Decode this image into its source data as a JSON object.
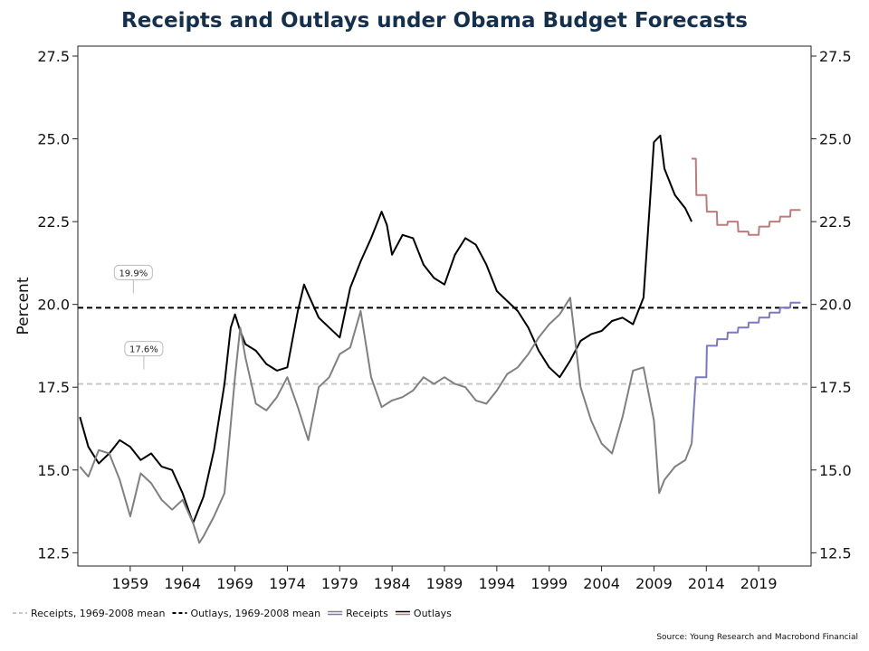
{
  "title": "Receipts and Outlays under Obama Budget Forecasts",
  "source": "Source: Young Research and Macrobond Financial",
  "colors": {
    "outlays": "#000000",
    "receipts": "#808080",
    "outlays_forecast": "#c07a7a",
    "receipts_forecast": "#7a78c4",
    "outlays_mean": "#000000",
    "receipts_mean": "#c8c8c8",
    "title": "#14304f"
  },
  "chart_data": {
    "type": "line",
    "title": "Receipts and Outlays under Obama Budget Forecasts",
    "ylabel": "Percent",
    "xlabel": "",
    "xlim": [
      1954,
      2024
    ],
    "ylim": [
      12.1,
      27.8
    ],
    "y_ticks": [
      12.5,
      15.0,
      17.5,
      20.0,
      22.5,
      25.0,
      27.5
    ],
    "y_tick_labels": [
      "12.5",
      "15.0",
      "17.5",
      "20.0",
      "22.5",
      "25.0",
      "27.5"
    ],
    "x_ticks": [
      1959,
      1964,
      1969,
      1974,
      1979,
      1984,
      1989,
      1994,
      1999,
      2004,
      2009,
      2014,
      2019
    ],
    "x_tick_labels": [
      "1959",
      "1964",
      "1969",
      "1974",
      "1979",
      "1984",
      "1989",
      "1994",
      "1999",
      "2004",
      "2009",
      "2014",
      "2019"
    ],
    "secondary_y_axis": true,
    "grid": false,
    "legend_position": "bottom",
    "legend": [
      {
        "label": "Receipts, 1969-2008 mean",
        "style": "dashed",
        "color": "#c8c8c8"
      },
      {
        "label": "Outlays, 1969-2008 mean",
        "style": "dashed",
        "color": "#000000"
      },
      {
        "label": "Receipts",
        "style": "solid-pair",
        "color": "#808080",
        "color2": "#7a78c4"
      },
      {
        "label": "Outlays",
        "style": "solid-pair",
        "color": "#000000",
        "color2": "#c07a7a"
      }
    ],
    "reference_lines": [
      {
        "name": "Receipts, 1969-2008 mean",
        "y": 17.6,
        "label": "17.6%",
        "label_x": 1960.3
      },
      {
        "name": "Outlays, 1969-2008 mean",
        "y": 19.9,
        "label": "19.9%",
        "label_x": 1959.3
      }
    ],
    "series": [
      {
        "name": "Outlays",
        "color": "#000000",
        "x": [
          1954.2,
          1955,
          1956,
          1957,
          1958,
          1959,
          1960,
          1961,
          1962,
          1963,
          1964,
          1965,
          1966,
          1967,
          1968,
          1968.6,
          1969.0,
          1969.5,
          1970,
          1971,
          1972,
          1973,
          1974,
          1975,
          1975.6,
          1976,
          1977,
          1978,
          1979,
          1980,
          1981,
          1982,
          1983,
          1983.5,
          1984,
          1985,
          1986,
          1987,
          1988,
          1989,
          1990,
          1991,
          1992,
          1993,
          1994,
          1995,
          1996,
          1997,
          1998,
          1999,
          2000,
          2001,
          2002,
          2003,
          2004,
          2005,
          2006,
          2007,
          2008,
          2008.6,
          2009,
          2009.6,
          2010,
          2011,
          2012,
          2012.6
        ],
        "values": [
          16.6,
          15.7,
          15.2,
          15.5,
          15.9,
          15.7,
          15.3,
          15.5,
          15.1,
          15.0,
          14.3,
          13.4,
          14.2,
          15.6,
          17.6,
          19.3,
          19.7,
          19.2,
          18.8,
          18.6,
          18.2,
          18.0,
          18.1,
          19.8,
          20.6,
          20.3,
          19.6,
          19.3,
          19.0,
          20.5,
          21.3,
          22.0,
          22.8,
          22.4,
          21.5,
          22.1,
          22.0,
          21.2,
          20.8,
          20.6,
          21.5,
          22.0,
          21.8,
          21.2,
          20.4,
          20.1,
          19.8,
          19.3,
          18.6,
          18.1,
          17.8,
          18.3,
          18.9,
          19.1,
          19.2,
          19.5,
          19.6,
          19.4,
          20.2,
          23.0,
          24.9,
          25.1,
          24.1,
          23.3,
          22.9,
          22.5
        ]
      },
      {
        "name": "Outlays forecast",
        "color": "#c07a7a",
        "x": [
          2012.6,
          2013.0,
          2013.05,
          2014.0,
          2014.05,
          2015,
          2015.05,
          2016,
          2016.05,
          2017,
          2017.05,
          2018,
          2018.05,
          2019,
          2019.05,
          2020,
          2020.05,
          2021,
          2021.05,
          2022,
          2022.05,
          2023
        ],
        "values": [
          24.4,
          24.4,
          23.3,
          23.3,
          22.8,
          22.8,
          22.4,
          22.4,
          22.5,
          22.5,
          22.2,
          22.2,
          22.1,
          22.1,
          22.35,
          22.35,
          22.5,
          22.5,
          22.65,
          22.65,
          22.85,
          22.85
        ]
      },
      {
        "name": "Receipts",
        "color": "#808080",
        "x": [
          1954.2,
          1955,
          1956,
          1957,
          1958,
          1959,
          1960,
          1961,
          1962,
          1963,
          1964,
          1965,
          1965.6,
          1966,
          1967,
          1968,
          1969,
          1969.5,
          1970,
          1971,
          1972,
          1973,
          1974,
          1975,
          1976,
          1977,
          1978,
          1979,
          1980,
          1981,
          1982,
          1983,
          1984,
          1985,
          1986,
          1987,
          1988,
          1989,
          1990,
          1991,
          1992,
          1993,
          1994,
          1995,
          1996,
          1997,
          1998,
          1999,
          2000,
          2001,
          2002,
          2003,
          2004,
          2005,
          2006,
          2007,
          2008,
          2009,
          2009.5,
          2010,
          2011,
          2012,
          2012.6
        ],
        "values": [
          15.1,
          14.8,
          15.6,
          15.5,
          14.7,
          13.6,
          14.9,
          14.6,
          14.1,
          13.8,
          14.1,
          13.4,
          12.8,
          13.0,
          13.6,
          14.3,
          17.8,
          19.3,
          18.4,
          17.0,
          16.8,
          17.2,
          17.8,
          16.9,
          15.9,
          17.5,
          17.8,
          18.5,
          18.7,
          19.8,
          17.8,
          16.9,
          17.1,
          17.2,
          17.4,
          17.8,
          17.6,
          17.8,
          17.6,
          17.5,
          17.1,
          17.0,
          17.4,
          17.9,
          18.1,
          18.5,
          19.0,
          19.4,
          19.7,
          20.2,
          17.5,
          16.5,
          15.8,
          15.5,
          16.6,
          18.0,
          18.1,
          16.5,
          14.3,
          14.7,
          15.1,
          15.3,
          15.8
        ]
      },
      {
        "name": "Receipts forecast",
        "color": "#7a78c4",
        "x": [
          2012.6,
          2013.0,
          2013.05,
          2014.0,
          2014.05,
          2015,
          2015.05,
          2016,
          2016.05,
          2017,
          2017.05,
          2018,
          2018.05,
          2019,
          2019.05,
          2020,
          2020.05,
          2021,
          2021.05,
          2022,
          2022.05,
          2023
        ],
        "values": [
          15.8,
          17.8,
          17.8,
          17.8,
          18.75,
          18.75,
          18.95,
          18.95,
          19.15,
          19.15,
          19.3,
          19.3,
          19.45,
          19.45,
          19.6,
          19.6,
          19.75,
          19.75,
          19.9,
          19.9,
          20.05,
          20.05
        ]
      }
    ]
  }
}
